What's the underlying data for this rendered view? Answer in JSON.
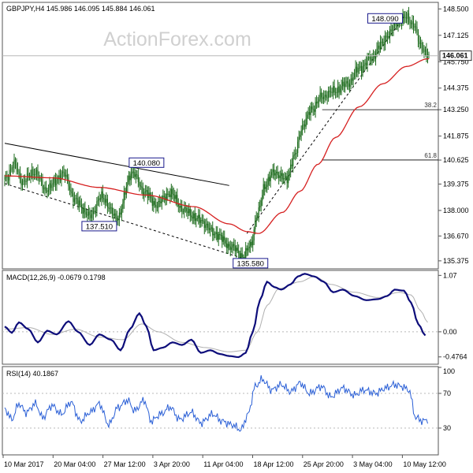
{
  "colors": {
    "background": "#ffffff",
    "frame": "#555555",
    "grid": "#b8b8b8",
    "candle": "#1c6b1c",
    "ma": "#d62020",
    "trendline": "#000000",
    "fib": "#000000",
    "macd": "#0d0d7a",
    "signal": "#b0b0b0",
    "rsi": "#2a5fd6",
    "label_border": "#1a1a8c",
    "watermark": "#d0d0d0"
  },
  "watermark": "ActionForex.com",
  "chart_data": [
    {
      "type": "candlestick",
      "title": "GBPJPY,H4  145.986 146.095 145.884 146.061",
      "current_price_label": "146.061",
      "current_price": 146.061,
      "ylim": [
        135.0,
        148.8
      ],
      "y_ticks": [
        "148.500",
        "147.125",
        "145.750",
        "144.375",
        "143.250",
        "141.875",
        "140.625",
        "139.375",
        "138.000",
        "136.670",
        "135.375"
      ],
      "y_tick_values": [
        148.5,
        147.125,
        145.75,
        144.375,
        143.25,
        141.875,
        140.625,
        139.375,
        138.0,
        136.67,
        135.375
      ],
      "x_ticks": [
        "10 Mar 2017",
        "20 Mar 04:00",
        "27 Mar 12:00",
        "3 Apr 20:00",
        "11 Apr 04:00",
        "18 Apr 12:00",
        "25 Apr 20:00",
        "3 May 04:00",
        "10 May 12:00"
      ],
      "bar_count": 360,
      "price_anchors": [
        [
          0,
          139.6
        ],
        [
          8,
          140.4
        ],
        [
          15,
          139.5
        ],
        [
          25,
          140.0
        ],
        [
          35,
          139.1
        ],
        [
          50,
          139.9
        ],
        [
          60,
          138.5
        ],
        [
          72,
          137.7
        ],
        [
          82,
          138.7
        ],
        [
          95,
          137.6
        ],
        [
          108,
          140.0
        ],
        [
          118,
          139.0
        ],
        [
          128,
          138.3
        ],
        [
          140,
          138.9
        ],
        [
          152,
          138.0
        ],
        [
          165,
          137.5
        ],
        [
          178,
          136.8
        ],
        [
          192,
          136.1
        ],
        [
          202,
          135.6
        ],
        [
          208,
          136.2
        ],
        [
          214,
          137.8
        ],
        [
          220,
          139.3
        ],
        [
          228,
          140.0
        ],
        [
          238,
          139.6
        ],
        [
          245,
          140.8
        ],
        [
          252,
          142.4
        ],
        [
          260,
          143.3
        ],
        [
          268,
          143.9
        ],
        [
          278,
          144.2
        ],
        [
          290,
          144.6
        ],
        [
          300,
          145.4
        ],
        [
          310,
          145.9
        ],
        [
          318,
          146.6
        ],
        [
          325,
          147.2
        ],
        [
          332,
          147.8
        ],
        [
          340,
          148.05
        ],
        [
          346,
          147.7
        ],
        [
          352,
          146.6
        ],
        [
          358,
          146.1
        ]
      ],
      "ma_anchors": [
        [
          0,
          139.8
        ],
        [
          40,
          139.7
        ],
        [
          80,
          139.2
        ],
        [
          120,
          138.8
        ],
        [
          160,
          138.2
        ],
        [
          190,
          137.3
        ],
        [
          205,
          136.9
        ],
        [
          215,
          136.8
        ],
        [
          235,
          137.9
        ],
        [
          250,
          139.0
        ],
        [
          265,
          140.4
        ],
        [
          280,
          141.8
        ],
        [
          300,
          143.4
        ],
        [
          320,
          144.6
        ],
        [
          340,
          145.5
        ],
        [
          358,
          145.9
        ]
      ],
      "labels": [
        {
          "text": "140.080",
          "bar": 108,
          "value": 140.08,
          "pos": "above"
        },
        {
          "text": "137.510",
          "bar": 72,
          "value": 137.51,
          "pos": "below"
        },
        {
          "text": "135.580",
          "bar": 200,
          "value": 135.58,
          "pos": "below"
        },
        {
          "text": "148.090",
          "bar": 338,
          "value": 148.09,
          "pos": "left"
        }
      ],
      "fib_levels": [
        {
          "label": "38.2",
          "value": 143.25,
          "from_bar": 202
        },
        {
          "label": "61.8",
          "value": 140.63,
          "from_bar": 202
        }
      ],
      "trendlines": [
        {
          "style": "solid",
          "points": [
            [
              0,
              141.5
            ],
            [
              190,
              139.3
            ]
          ]
        },
        {
          "style": "dashed",
          "points": [
            [
              0,
              139.4
            ],
            [
              202,
              135.5
            ]
          ]
        },
        {
          "style": "dashed",
          "points": [
            [
              205,
              136.8
            ],
            [
              338,
              148.1
            ]
          ]
        }
      ]
    },
    {
      "type": "line",
      "title": "MACD(12,26,9) -0.0679 0.1798",
      "ylim": [
        -0.6,
        1.15
      ],
      "y_ticks": [
        "1.07",
        "0.00",
        "-0.4764"
      ],
      "y_tick_values": [
        1.07,
        0.0,
        -0.4764
      ],
      "series": [
        {
          "name": "MACD",
          "anchors": [
            [
              0,
              0.1
            ],
            [
              6,
              -0.02
            ],
            [
              12,
              0.18
            ],
            [
              20,
              0.05
            ],
            [
              28,
              -0.2
            ],
            [
              36,
              0.02
            ],
            [
              44,
              -0.05
            ],
            [
              54,
              0.2
            ],
            [
              62,
              0.0
            ],
            [
              72,
              -0.25
            ],
            [
              80,
              -0.05
            ],
            [
              90,
              -0.15
            ],
            [
              98,
              -0.35
            ],
            [
              106,
              0.05
            ],
            [
              114,
              0.35
            ],
            [
              120,
              0.1
            ],
            [
              126,
              -0.35
            ],
            [
              134,
              -0.3
            ],
            [
              142,
              -0.2
            ],
            [
              150,
              -0.25
            ],
            [
              158,
              -0.15
            ],
            [
              166,
              -0.4
            ],
            [
              174,
              -0.35
            ],
            [
              182,
              -0.42
            ],
            [
              190,
              -0.46
            ],
            [
              198,
              -0.48
            ],
            [
              204,
              -0.4
            ],
            [
              210,
              0.0
            ],
            [
              216,
              0.6
            ],
            [
              222,
              0.95
            ],
            [
              228,
              0.85
            ],
            [
              234,
              0.8
            ],
            [
              242,
              0.9
            ],
            [
              248,
              1.05
            ],
            [
              254,
              1.1
            ],
            [
              262,
              1.05
            ],
            [
              270,
              0.95
            ],
            [
              278,
              0.75
            ],
            [
              286,
              0.8
            ],
            [
              296,
              0.68
            ],
            [
              306,
              0.6
            ],
            [
              316,
              0.62
            ],
            [
              324,
              0.68
            ],
            [
              330,
              0.8
            ],
            [
              338,
              0.78
            ],
            [
              344,
              0.55
            ],
            [
              350,
              0.15
            ],
            [
              356,
              -0.07
            ]
          ]
        },
        {
          "name": "Signal",
          "anchors": [
            [
              0,
              0.05
            ],
            [
              20,
              0.08
            ],
            [
              40,
              -0.05
            ],
            [
              60,
              0.05
            ],
            [
              80,
              -0.1
            ],
            [
              100,
              -0.15
            ],
            [
              116,
              0.15
            ],
            [
              130,
              0.0
            ],
            [
              150,
              -0.2
            ],
            [
              170,
              -0.3
            ],
            [
              190,
              -0.38
            ],
            [
              204,
              -0.35
            ],
            [
              214,
              0.0
            ],
            [
              222,
              0.5
            ],
            [
              232,
              0.82
            ],
            [
              250,
              0.95
            ],
            [
              262,
              1.05
            ],
            [
              276,
              0.9
            ],
            [
              296,
              0.75
            ],
            [
              316,
              0.65
            ],
            [
              334,
              0.75
            ],
            [
              344,
              0.7
            ],
            [
              352,
              0.4
            ],
            [
              358,
              0.18
            ]
          ]
        }
      ]
    },
    {
      "type": "line",
      "title": "RSI(14) 40.1867",
      "ylim": [
        0,
        100
      ],
      "y_ticks": [
        "100",
        "70",
        "30"
      ],
      "y_tick_values": [
        100,
        70,
        30
      ],
      "series": [
        {
          "name": "RSI",
          "anchors": [
            [
              0,
              52
            ],
            [
              6,
              40
            ],
            [
              12,
              58
            ],
            [
              18,
              48
            ],
            [
              26,
              58
            ],
            [
              32,
              42
            ],
            [
              40,
              56
            ],
            [
              48,
              46
            ],
            [
              56,
              60
            ],
            [
              64,
              38
            ],
            [
              72,
              48
            ],
            [
              80,
              58
            ],
            [
              88,
              34
            ],
            [
              96,
              54
            ],
            [
              104,
              62
            ],
            [
              110,
              50
            ],
            [
              118,
              62
            ],
            [
              124,
              38
            ],
            [
              132,
              46
            ],
            [
              140,
              54
            ],
            [
              148,
              40
            ],
            [
              158,
              48
            ],
            [
              166,
              36
            ],
            [
              176,
              46
            ],
            [
              184,
              38
            ],
            [
              192,
              34
            ],
            [
              200,
              28
            ],
            [
              206,
              46
            ],
            [
              212,
              78
            ],
            [
              218,
              86
            ],
            [
              226,
              74
            ],
            [
              234,
              80
            ],
            [
              242,
              72
            ],
            [
              250,
              82
            ],
            [
              258,
              70
            ],
            [
              268,
              78
            ],
            [
              276,
              66
            ],
            [
              286,
              76
            ],
            [
              296,
              68
            ],
            [
              304,
              74
            ],
            [
              314,
              70
            ],
            [
              322,
              76
            ],
            [
              330,
              80
            ],
            [
              336,
              78
            ],
            [
              342,
              74
            ],
            [
              348,
              42
            ],
            [
              354,
              38
            ],
            [
              358,
              40
            ]
          ]
        }
      ]
    }
  ]
}
